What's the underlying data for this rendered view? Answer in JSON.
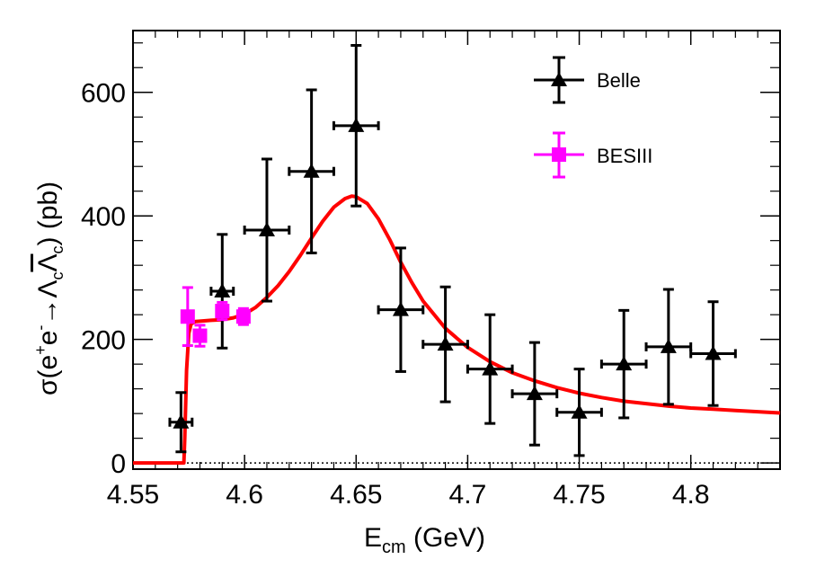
{
  "chart_data": {
    "type": "scatter",
    "xlim": [
      4.55,
      4.84
    ],
    "ylim": [
      -10,
      700
    ],
    "x_ticks": [
      4.55,
      4.6,
      4.65,
      4.7,
      4.75,
      4.8
    ],
    "x_tick_labels": [
      "4.55",
      "4.6",
      "4.65",
      "4.7",
      "4.75",
      "4.8"
    ],
    "y_ticks": [
      0,
      200,
      400,
      600
    ],
    "y_tick_labels": [
      "0",
      "200",
      "400",
      "600"
    ],
    "xlabel": {
      "main": "E",
      "sub": "cm",
      "rest": " (GeV)"
    },
    "ylabel": {
      "sigma": "σ(e",
      "sup_plus": "+",
      "e": "e",
      "sup_minus": "-",
      "arrow": "→",
      "lambda": "Λ",
      "sub_c": "c",
      "rest": ") (pb)"
    },
    "legend_position": "top-right",
    "series": [
      {
        "name": "Belle",
        "marker": "triangle",
        "color": "#000000",
        "points": [
          {
            "x": 4.5715,
            "y": 66,
            "xerr": 0.005,
            "yerr_lo": 48,
            "yerr_hi": 48
          },
          {
            "x": 4.59,
            "y": 278,
            "xerr": 0.005,
            "yerr_lo": 92,
            "yerr_hi": 92
          },
          {
            "x": 4.61,
            "y": 377,
            "xerr": 0.01,
            "yerr_lo": 115,
            "yerr_hi": 115
          },
          {
            "x": 4.63,
            "y": 472,
            "xerr": 0.01,
            "yerr_lo": 132,
            "yerr_hi": 132
          },
          {
            "x": 4.65,
            "y": 546,
            "xerr": 0.01,
            "yerr_lo": 130,
            "yerr_hi": 130
          },
          {
            "x": 4.67,
            "y": 248,
            "xerr": 0.01,
            "yerr_lo": 100,
            "yerr_hi": 100
          },
          {
            "x": 4.69,
            "y": 192,
            "xerr": 0.01,
            "yerr_lo": 93,
            "yerr_hi": 93
          },
          {
            "x": 4.71,
            "y": 152,
            "xerr": 0.01,
            "yerr_lo": 88,
            "yerr_hi": 88
          },
          {
            "x": 4.73,
            "y": 112,
            "xerr": 0.01,
            "yerr_lo": 83,
            "yerr_hi": 83
          },
          {
            "x": 4.75,
            "y": 82,
            "xerr": 0.01,
            "yerr_lo": 70,
            "yerr_hi": 70
          },
          {
            "x": 4.77,
            "y": 160,
            "xerr": 0.01,
            "yerr_lo": 87,
            "yerr_hi": 87
          },
          {
            "x": 4.79,
            "y": 188,
            "xerr": 0.01,
            "yerr_lo": 93,
            "yerr_hi": 93
          },
          {
            "x": 4.81,
            "y": 177,
            "xerr": 0.01,
            "yerr_lo": 84,
            "yerr_hi": 84
          }
        ]
      },
      {
        "name": "BESIII",
        "marker": "square",
        "color": "#ff00ff",
        "points": [
          {
            "x": 4.5745,
            "y": 237,
            "yerr_lo": 47,
            "yerr_hi": 47
          },
          {
            "x": 4.58,
            "y": 206,
            "yerr_lo": 17,
            "yerr_hi": 17
          },
          {
            "x": 4.59,
            "y": 246,
            "yerr_lo": 14,
            "yerr_hi": 14
          },
          {
            "x": 4.5995,
            "y": 237,
            "yerr_lo": 13,
            "yerr_hi": 13
          }
        ]
      }
    ],
    "fit_curve": {
      "color": "#ff0000",
      "points": [
        [
          4.55,
          0
        ],
        [
          4.5728,
          0
        ],
        [
          4.5732,
          40
        ],
        [
          4.574,
          150
        ],
        [
          4.575,
          210
        ],
        [
          4.576,
          225
        ],
        [
          4.578,
          229
        ],
        [
          4.585,
          231
        ],
        [
          4.59,
          232
        ],
        [
          4.595,
          235
        ],
        [
          4.6,
          241
        ],
        [
          4.605,
          252
        ],
        [
          4.61,
          268
        ],
        [
          4.615,
          287
        ],
        [
          4.62,
          310
        ],
        [
          4.625,
          336
        ],
        [
          4.63,
          364
        ],
        [
          4.635,
          391
        ],
        [
          4.64,
          414
        ],
        [
          4.645,
          428
        ],
        [
          4.648,
          432
        ],
        [
          4.65,
          431
        ],
        [
          4.655,
          420
        ],
        [
          4.66,
          395
        ],
        [
          4.665,
          362
        ],
        [
          4.67,
          325
        ],
        [
          4.675,
          292
        ],
        [
          4.68,
          262
        ],
        [
          4.69,
          218
        ],
        [
          4.7,
          187
        ],
        [
          4.71,
          164
        ],
        [
          4.72,
          146
        ],
        [
          4.73,
          133
        ],
        [
          4.74,
          122
        ],
        [
          4.75,
          113
        ],
        [
          4.76,
          106
        ],
        [
          4.77,
          100
        ],
        [
          4.78,
          96
        ],
        [
          4.79,
          92
        ],
        [
          4.8,
          89
        ],
        [
          4.81,
          87
        ],
        [
          4.82,
          85
        ],
        [
          4.83,
          83
        ],
        [
          4.84,
          81
        ]
      ]
    },
    "reference_line": {
      "y": 0,
      "style": "dotted"
    }
  }
}
